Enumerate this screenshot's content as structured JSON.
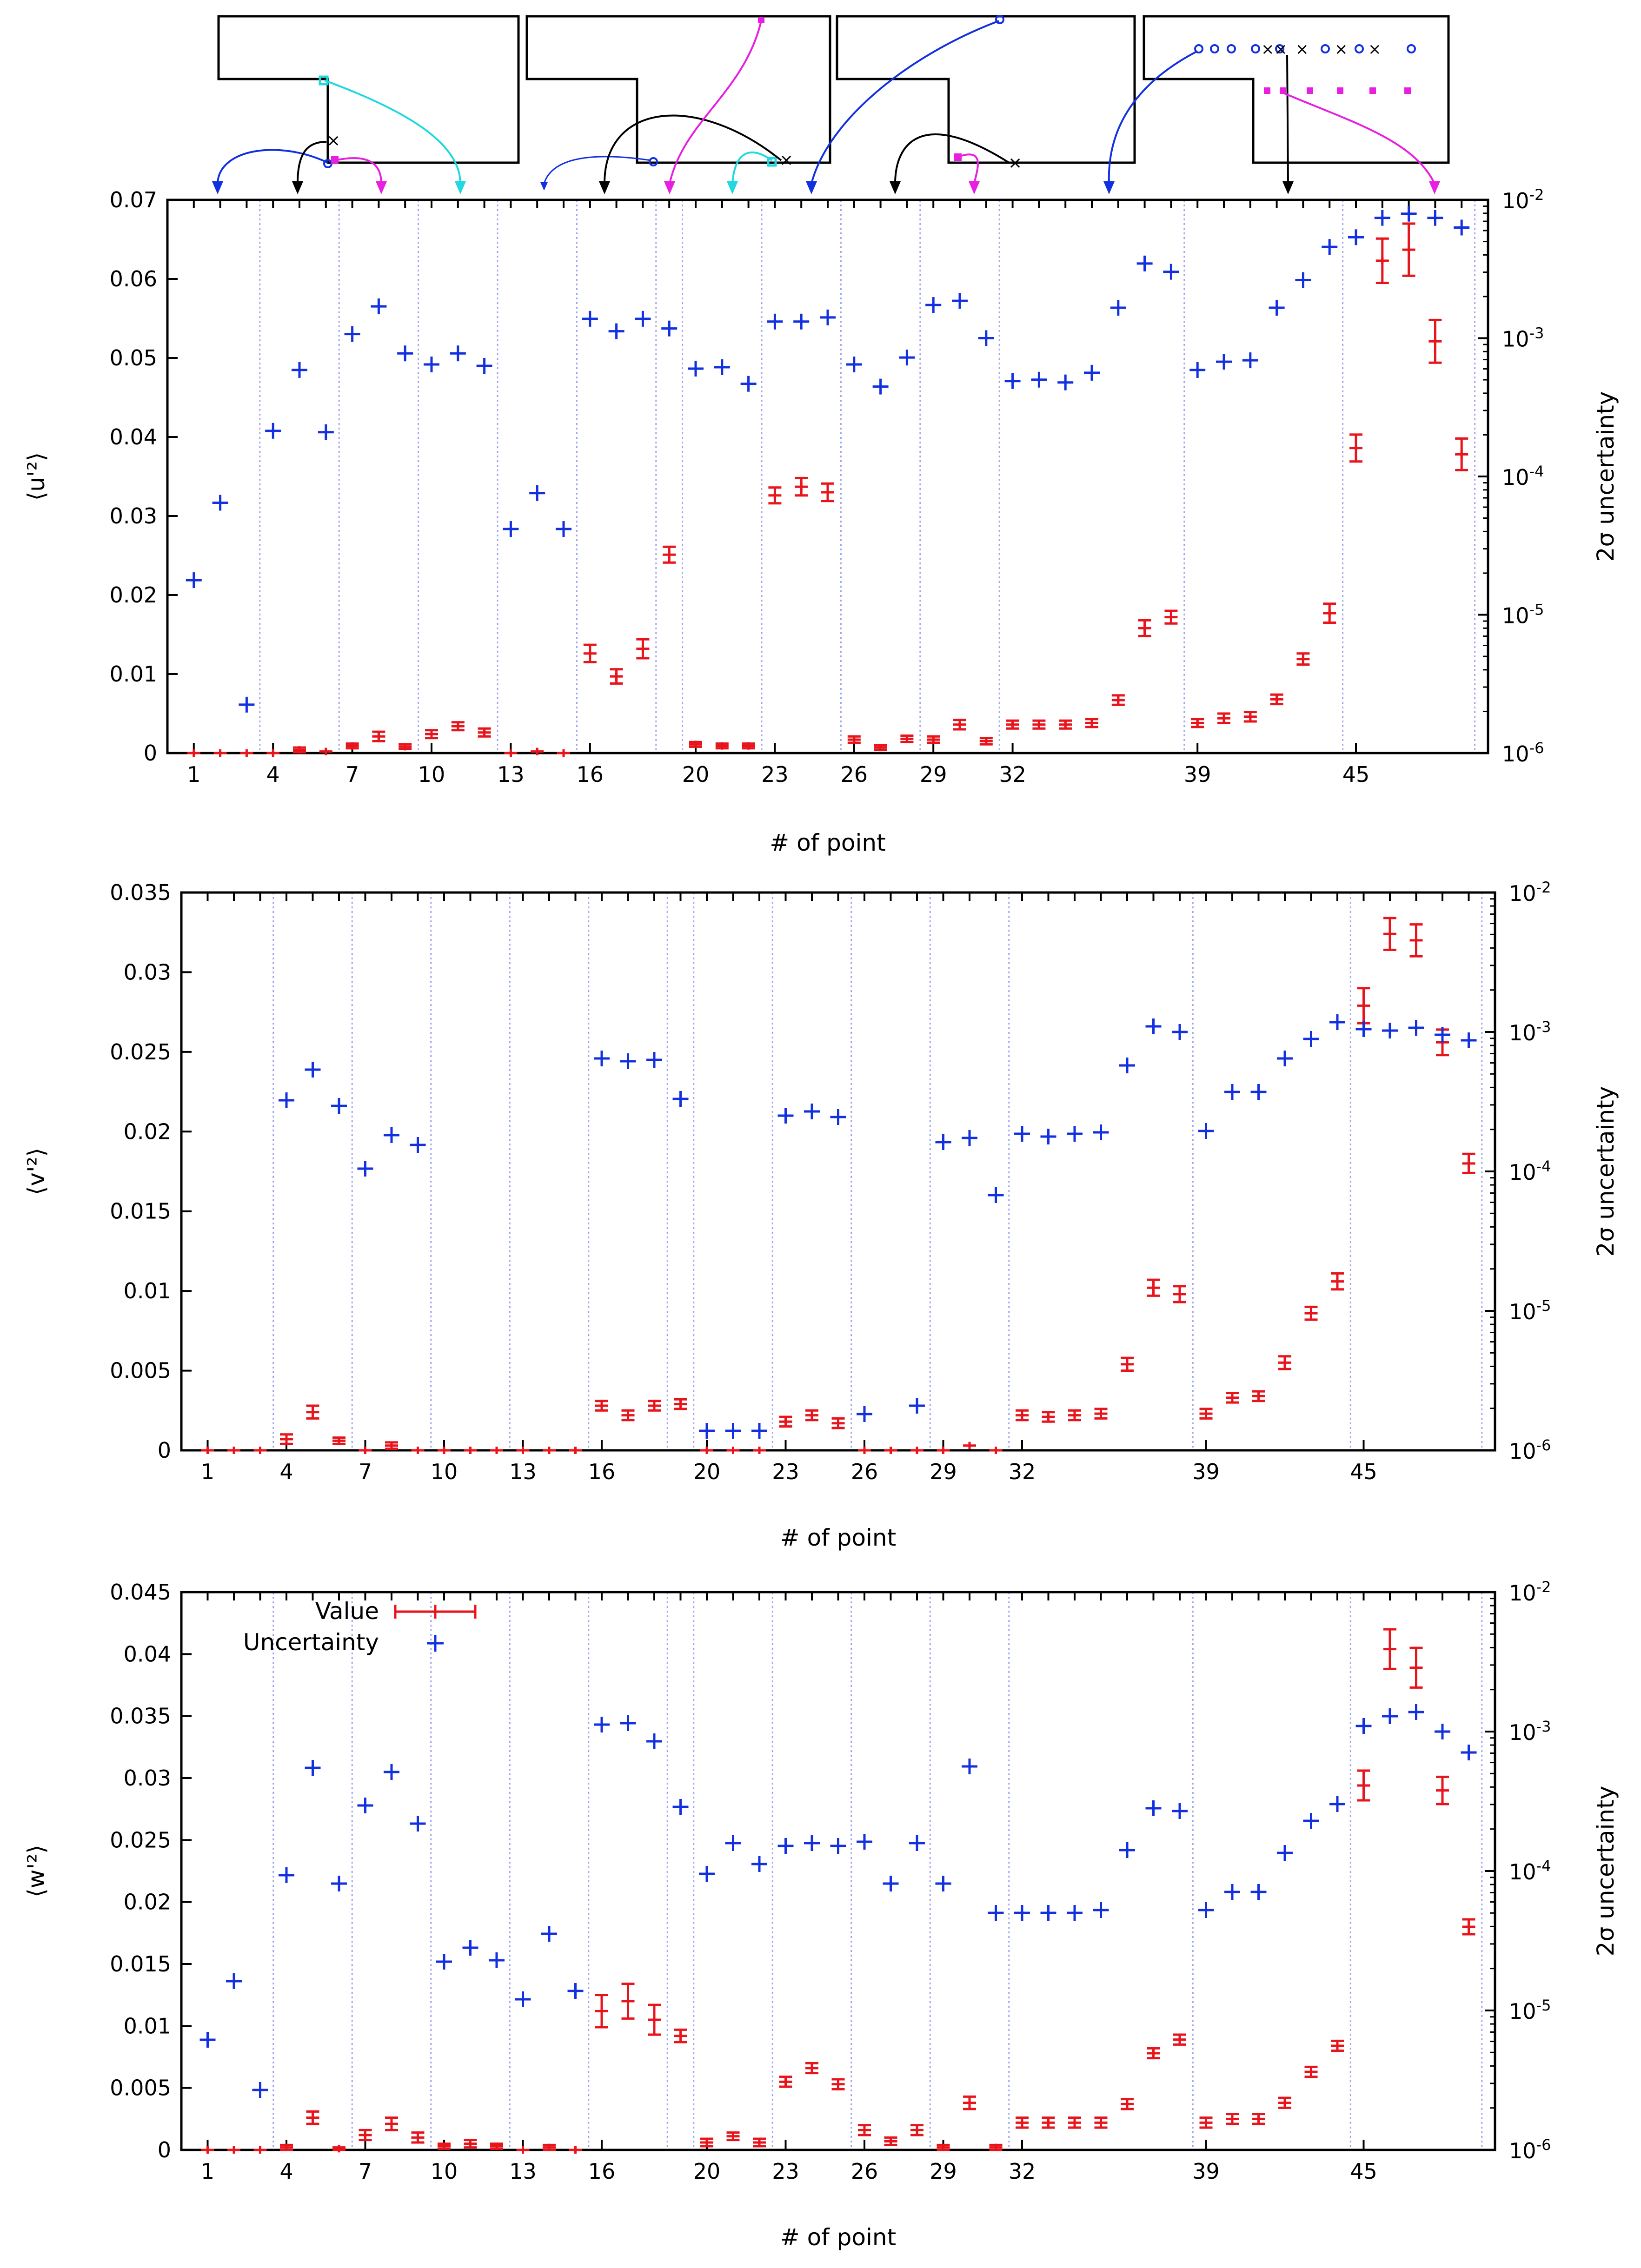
{
  "x_tick_labels": [
    "1",
    "4",
    "7",
    "10",
    "13",
    "16",
    "20",
    "23",
    "26",
    "29",
    "32",
    "39",
    "45"
  ],
  "x_tick_positions": [
    1,
    4,
    7,
    10,
    13,
    16,
    20,
    23,
    26,
    29,
    32,
    39,
    45
  ],
  "x_range": [
    0,
    50
  ],
  "xlabel": "# of point",
  "y2label": "2σ uncertainty",
  "y2_tick_labels": [
    "10-6",
    "10-5",
    "10-4",
    "10-3",
    "10-2"
  ],
  "legend": {
    "value_label": "Value",
    "uncertainty_label": "Uncertainty"
  },
  "colors": {
    "value": "#e8141b",
    "uncertainty": "#1230e0",
    "sep": "#9ea5ee"
  },
  "separators": [
    3.5,
    6.5,
    9.5,
    12.5,
    15.5,
    18.5,
    19.5,
    22.5,
    25.5,
    28.5,
    31.5,
    38.5,
    44.5,
    49.5
  ],
  "chart_data": [
    {
      "type": "scatter",
      "name": "u",
      "ylabel": "⟨u'²⟩",
      "ylim": [
        0,
        0.07
      ],
      "y_tick_labels": [
        "0",
        "0.01",
        "0.02",
        "0.03",
        "0.04",
        "0.05",
        "0.06",
        "0.07"
      ],
      "y2lim_log10": [
        -6,
        -2
      ],
      "series": [
        {
          "name": "Value",
          "x": [
            1,
            2,
            3,
            4,
            5,
            6,
            7,
            8,
            9,
            10,
            11,
            12,
            13,
            14,
            15,
            16,
            17,
            18,
            19,
            20,
            21,
            22,
            23,
            24,
            25,
            26,
            27,
            28,
            29,
            30,
            31,
            32,
            33,
            34,
            35,
            36,
            37,
            38,
            39,
            40,
            41,
            42,
            43,
            44,
            45,
            46,
            47,
            48,
            49
          ],
          "values": [
            0,
            0,
            0,
            0,
            0.0004,
            0.0002,
            0.0009,
            0.0021,
            0.0008,
            0.0024,
            0.0034,
            0.0026,
            0,
            0.0002,
            0,
            0.0126,
            0.0097,
            0.0132,
            0.0251,
            0.0011,
            0.0009,
            0.0009,
            0.0326,
            0.0337,
            0.033,
            0.0017,
            0.0007,
            0.0018,
            0.0017,
            0.0036,
            0.0015,
            0.0036,
            0.0036,
            0.0036,
            0.0038,
            0.0067,
            0.0158,
            0.0172,
            0.0038,
            0.0044,
            0.0046,
            0.0068,
            0.0119,
            0.0177,
            0.0386,
            0.0623,
            0.0637,
            0.0521,
            0.0378
          ],
          "err": [
            0,
            0,
            0,
            0,
            0.0003,
            0,
            0.0003,
            0.0006,
            0.0003,
            0.0005,
            0.0005,
            0.0005,
            0,
            0,
            0,
            0.0011,
            0.0009,
            0.0012,
            0.001,
            0.0003,
            0.0003,
            0.0003,
            0.001,
            0.0011,
            0.0011,
            0.0004,
            0.0003,
            0.0004,
            0.0004,
            0.0006,
            0.0004,
            0.0005,
            0.0005,
            0.0005,
            0.0005,
            0.0006,
            0.001,
            0.0008,
            0.0005,
            0.0006,
            0.0006,
            0.0006,
            0.0007,
            0.0012,
            0.0017,
            0.0028,
            0.0033,
            0.0027,
            0.002
          ]
        },
        {
          "name": "Uncertainty",
          "x": [
            1,
            2,
            3,
            4,
            5,
            6,
            7,
            8,
            9,
            10,
            11,
            12,
            13,
            14,
            15,
            16,
            17,
            18,
            19,
            20,
            21,
            22,
            23,
            24,
            25,
            26,
            27,
            28,
            29,
            30,
            31,
            32,
            33,
            34,
            35,
            36,
            37,
            38,
            39,
            40,
            41,
            42,
            43,
            44,
            45,
            46,
            47,
            48,
            49
          ],
          "log10": [
            -4.75,
            -4.19,
            -5.65,
            -3.67,
            -3.23,
            -3.68,
            -2.97,
            -2.77,
            -3.11,
            -3.19,
            -3.11,
            -3.2,
            -4.38,
            -4.12,
            -4.38,
            -2.86,
            -2.95,
            -2.86,
            -2.93,
            -3.22,
            -3.21,
            -3.33,
            -2.88,
            -2.88,
            -2.85,
            -3.19,
            -3.35,
            -3.14,
            -2.76,
            -2.73,
            -3.0,
            -3.31,
            -3.3,
            -3.32,
            -3.25,
            -2.78,
            -2.46,
            -2.52,
            -3.23,
            -3.17,
            -3.16,
            -2.78,
            -2.58,
            -2.34,
            -2.27,
            -2.13,
            -2.1,
            -2.13,
            -2.2
          ]
        }
      ]
    },
    {
      "type": "scatter",
      "name": "v",
      "ylabel": "⟨v'²⟩",
      "ylim": [
        0,
        0.035
      ],
      "y_tick_labels": [
        "0",
        "0.005",
        "0.01",
        "0.015",
        "0.02",
        "0.025",
        "0.03",
        "0.035"
      ],
      "y2lim_log10": [
        -6,
        -2
      ],
      "series": [
        {
          "name": "Value",
          "x": [
            1,
            2,
            3,
            4,
            5,
            6,
            7,
            8,
            9,
            10,
            11,
            12,
            13,
            14,
            15,
            16,
            17,
            18,
            19,
            20,
            21,
            22,
            23,
            24,
            25,
            26,
            27,
            28,
            29,
            30,
            31,
            32,
            33,
            34,
            35,
            36,
            37,
            38,
            39,
            40,
            41,
            42,
            43,
            44,
            45,
            46,
            47,
            48,
            49
          ],
          "values": [
            0,
            0,
            0,
            0.0007,
            0.0024,
            0.0006,
            0,
            0.0003,
            0,
            0,
            0,
            0,
            0,
            0,
            0,
            0.0028,
            0.0022,
            0.0028,
            0.0029,
            0,
            0,
            0,
            0.0018,
            0.0022,
            0.0017,
            0,
            0,
            0,
            0,
            0.0003,
            0,
            0.0022,
            0.0021,
            0.0022,
            0.0023,
            0.0054,
            0.0102,
            0.0098,
            0.0023,
            0.0033,
            0.0034,
            0.0055,
            0.0086,
            0.0106,
            0.0279,
            0.0324,
            0.032,
            0.0256,
            0.018
          ],
          "err": [
            0,
            0,
            0,
            0.0003,
            0.0004,
            0.0002,
            0,
            0.0002,
            0,
            0,
            0,
            0,
            0,
            0,
            0,
            0.0003,
            0.0003,
            0.0003,
            0.0003,
            0,
            0,
            0,
            0.0003,
            0.0003,
            0.0003,
            0,
            0,
            0,
            0,
            0,
            0,
            0.0003,
            0.0003,
            0.0003,
            0.0003,
            0.0004,
            0.0005,
            0.0005,
            0.0003,
            0.0003,
            0.0003,
            0.0004,
            0.0004,
            0.0005,
            0.0011,
            0.001,
            0.001,
            0.0008,
            0.0006
          ]
        },
        {
          "name": "Uncertainty",
          "x": [
            4,
            5,
            6,
            7,
            8,
            9,
            16,
            17,
            18,
            19,
            20,
            21,
            22,
            23,
            24,
            25,
            26,
            28,
            29,
            30,
            31,
            32,
            33,
            34,
            35,
            36,
            37,
            38,
            39,
            40,
            41,
            42,
            43,
            44,
            45,
            46,
            47,
            48,
            49
          ],
          "log10": [
            -3.49,
            -3.27,
            -3.53,
            -3.98,
            -3.74,
            -3.81,
            -3.19,
            -3.21,
            -3.2,
            -3.48,
            -5.86,
            -5.86,
            -5.86,
            -3.6,
            -3.57,
            -3.61,
            -5.74,
            -5.68,
            -3.79,
            -3.76,
            -4.17,
            -3.73,
            -3.75,
            -3.73,
            -3.72,
            -3.24,
            -2.96,
            -3.0,
            -3.71,
            -3.43,
            -3.43,
            -3.19,
            -3.05,
            -2.93,
            -2.98,
            -2.99,
            -2.97,
            -3.02,
            -3.06
          ]
        }
      ]
    },
    {
      "type": "scatter",
      "name": "w",
      "ylabel": "⟨w'²⟩",
      "ylim": [
        0,
        0.045
      ],
      "y_tick_labels": [
        "0",
        "0.005",
        "0.01",
        "0.015",
        "0.02",
        "0.025",
        "0.03",
        "0.035",
        "0.04",
        "0.045"
      ],
      "y2lim_log10": [
        -6,
        -2
      ],
      "series": [
        {
          "name": "Value",
          "x": [
            1,
            2,
            3,
            4,
            5,
            6,
            7,
            8,
            9,
            10,
            11,
            12,
            13,
            14,
            15,
            16,
            17,
            18,
            19,
            20,
            21,
            22,
            23,
            24,
            25,
            26,
            27,
            28,
            29,
            30,
            31,
            32,
            33,
            34,
            35,
            36,
            37,
            38,
            39,
            40,
            41,
            42,
            43,
            44,
            45,
            46,
            47,
            48,
            49
          ],
          "values": [
            0,
            0,
            0,
            0.0002,
            0.0026,
            0.0001,
            0.0012,
            0.0021,
            0.001,
            0.0003,
            0.0005,
            0.0003,
            0,
            0.0002,
            0,
            0.0112,
            0.012,
            0.0105,
            0.0092,
            0.0006,
            0.0011,
            0.0006,
            0.0055,
            0.0066,
            0.0053,
            0.0016,
            0.0007,
            0.0016,
            0.0002,
            0.0038,
            0.0002,
            0.0022,
            0.0022,
            0.0022,
            0.0022,
            0.0037,
            0.0078,
            0.0089,
            0.0022,
            0.0025,
            0.0025,
            0.0038,
            0.0063,
            0.0084,
            0.0294,
            0.0404,
            0.0389,
            0.029,
            0.018
          ],
          "err": [
            0,
            0,
            0,
            0.0002,
            0.0005,
            0.0001,
            0.0004,
            0.0005,
            0.0004,
            0.0002,
            0.0003,
            0.0002,
            0,
            0.0002,
            0,
            0.0013,
            0.0014,
            0.0012,
            0.0005,
            0.0003,
            0.0003,
            0.0003,
            0.0004,
            0.0004,
            0.0004,
            0.0004,
            0.0003,
            0.0004,
            0.0002,
            0.0005,
            0.0002,
            0.0004,
            0.0004,
            0.0004,
            0.0004,
            0.0004,
            0.0004,
            0.0004,
            0.0004,
            0.0004,
            0.0004,
            0.0004,
            0.0004,
            0.0004,
            0.0012,
            0.0016,
            0.0016,
            0.0011,
            0.0006
          ]
        },
        {
          "name": "Uncertainty",
          "x": [
            1,
            2,
            3,
            4,
            5,
            6,
            7,
            8,
            9,
            10,
            11,
            12,
            13,
            14,
            15,
            16,
            17,
            18,
            19,
            20,
            21,
            22,
            23,
            24,
            25,
            26,
            27,
            28,
            29,
            30,
            31,
            32,
            33,
            34,
            35,
            36,
            37,
            38,
            39,
            40,
            41,
            42,
            43,
            44,
            45,
            46,
            47,
            48,
            49
          ],
          "log10": [
            -5.21,
            -4.79,
            -5.57,
            -4.03,
            -3.26,
            -4.09,
            -3.53,
            -3.29,
            -3.66,
            -4.65,
            -4.55,
            -4.64,
            -4.92,
            -4.45,
            -4.86,
            -2.95,
            -2.94,
            -3.07,
            -3.54,
            -4.02,
            -3.8,
            -3.95,
            -3.82,
            -3.8,
            -3.82,
            -3.79,
            -4.09,
            -3.8,
            -4.09,
            -3.25,
            -4.3,
            -4.3,
            -4.3,
            -4.3,
            -4.28,
            -3.85,
            -3.55,
            -3.57,
            -4.28,
            -4.15,
            -4.15,
            -3.87,
            -3.64,
            -3.52,
            -2.96,
            -2.89,
            -2.86,
            -3.0,
            -3.15
          ]
        }
      ]
    }
  ]
}
